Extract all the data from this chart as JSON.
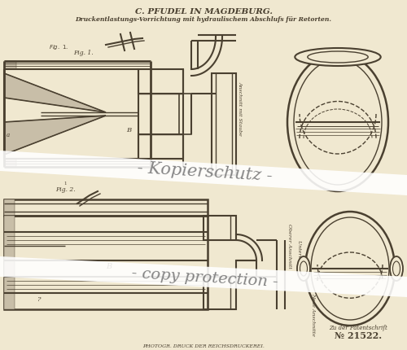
{
  "bg_hex": "#f0e8d0",
  "title1": "C. PFUDEL IN MAGDEBURG.",
  "title2": "Druckentlastungs-Vorrichtung mit hydraulischem Abschlufs für Retorten.",
  "watermark1": "- Kopierschutz -",
  "watermark2": "- copy protection -",
  "patent_label": "Zu der Patentschrift",
  "patent_number": "№ 21522.",
  "footer": "PHOTOGR. DRUCK DER REICHSDRUCKEREI.",
  "lc": "#4a4030",
  "lw": 1.2
}
